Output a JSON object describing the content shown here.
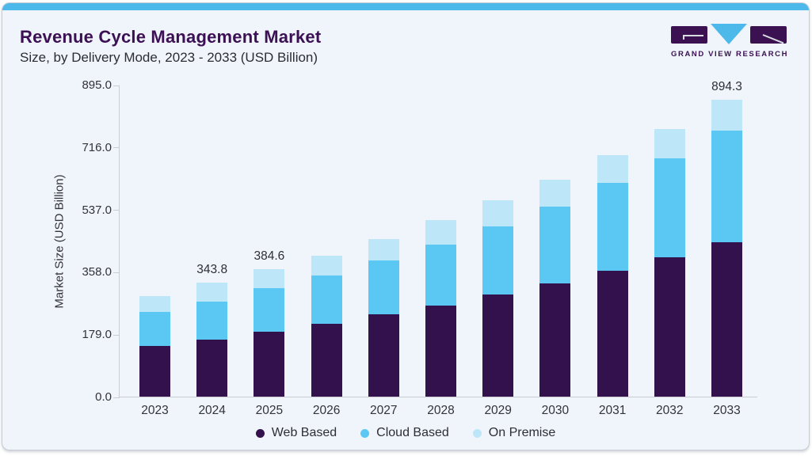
{
  "header": {
    "title": "Revenue Cycle Management Market",
    "subtitle": "Size, by Delivery Mode, 2023 - 2033 (USD Billion)",
    "logo_text": "GRAND VIEW RESEARCH"
  },
  "theme": {
    "card_background": "#eff5fa",
    "accent_strip": "#4db9ea",
    "title_color": "#3c1055",
    "axis_line": "#c9cdd2",
    "label_text": "#33333a"
  },
  "chart_data": {
    "type": "bar",
    "stacked": true,
    "title": "Revenue Cycle Management Market Size, by Delivery Mode, 2023 - 2033 (USD Billion)",
    "xlabel": "",
    "ylabel": "Market Size (USD Billion)",
    "categories": [
      "2023",
      "2024",
      "2025",
      "2026",
      "2027",
      "2028",
      "2029",
      "2030",
      "2031",
      "2032",
      "2033"
    ],
    "series": [
      {
        "name": "Web Based",
        "color": "#33114d",
        "values": [
          153.0,
          173.0,
          194.5,
          220.0,
          248.5,
          275.5,
          307.5,
          341.0,
          379.0,
          420.5,
          464.5
        ]
      },
      {
        "name": "Cloud Based",
        "color": "#5bc8f3",
        "values": [
          103.0,
          114.5,
          132.5,
          145.0,
          162.0,
          183.5,
          206.0,
          231.5,
          265.5,
          297.5,
          336.3
        ]
      },
      {
        "name": "On Premise",
        "color": "#bde7f8",
        "values": [
          47.4,
          56.3,
          57.6,
          59.8,
          64.3,
          72.2,
          77.2,
          80.8,
          83.2,
          87.6,
          93.5
        ]
      }
    ],
    "totals": [
      303.4,
      343.8,
      384.6,
      424.8,
      474.8,
      531.2,
      590.7,
      653.3,
      727.7,
      805.6,
      894.3
    ],
    "bar_total_labels": {
      "2024": "343.8",
      "2025": "384.6",
      "2033": "894.3"
    },
    "y_ticks": [
      "0.0",
      "179.0",
      "358.0",
      "537.0",
      "716.0",
      "895.0"
    ],
    "ylim": [
      0,
      895
    ],
    "grid": false,
    "legend_position": "bottom"
  }
}
